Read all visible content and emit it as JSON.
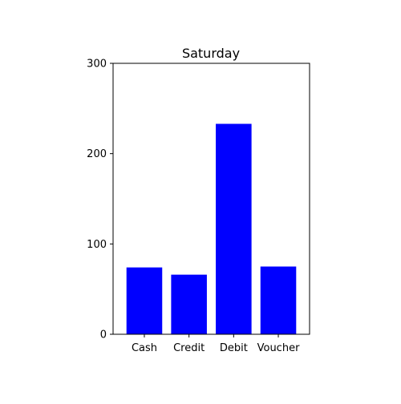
{
  "chart_data": {
    "type": "bar",
    "title": "Saturday",
    "categories": [
      "Cash",
      "Credit",
      "Debit",
      "Voucher"
    ],
    "values": [
      74,
      66,
      233,
      75
    ],
    "xlabel": "",
    "ylabel": "",
    "ylim": [
      0,
      300
    ],
    "yticks": [
      "0",
      "100",
      "200",
      "300"
    ],
    "ytick_values": [
      0,
      100,
      200,
      300
    ],
    "grid": false,
    "bar_color": "#0000ff"
  }
}
